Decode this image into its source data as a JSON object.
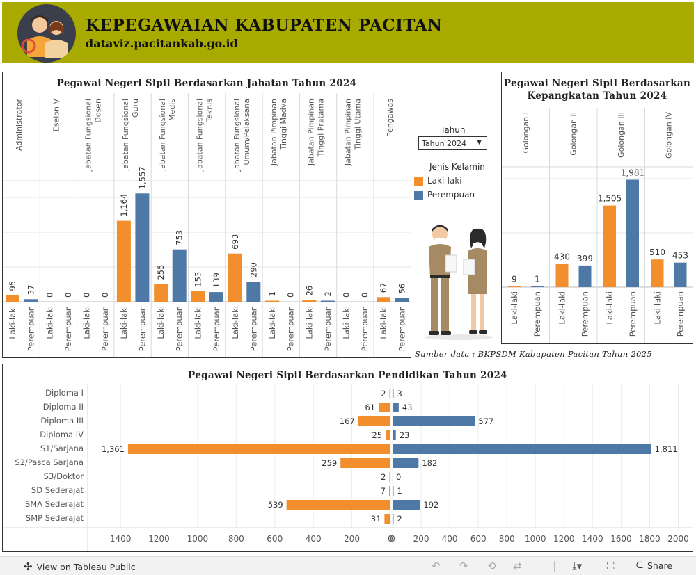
{
  "header": {
    "title": "KEPEGAWAIAN KABUPATEN PACITAN",
    "subtitle": "dataviz.pacitankab.go.id"
  },
  "colors": {
    "male": "#f28e2b",
    "female": "#4e79a7",
    "header_bg": "#a8aa00"
  },
  "legend": {
    "title": "Jenis Kelamin",
    "items": [
      {
        "label": "Laki-laki",
        "color": "#f28e2b"
      },
      {
        "label": "Perempuan",
        "color": "#4e79a7"
      }
    ]
  },
  "filter": {
    "label": "Tahun",
    "value": "Tahun 2024"
  },
  "source": "Sumber data : BKPSDM Kabupaten Pacitan Tahun 2025",
  "footer": {
    "link": "View on Tableau Public",
    "share": "Share"
  },
  "chart_data": [
    {
      "type": "bar",
      "title": "Pegawai Negeri Sipil Berdasarkan Jabatan Tahun 2024",
      "categories": [
        [
          "Administrator"
        ],
        [
          "Eselon V"
        ],
        [
          "Jabatan Fungsional",
          "Dosen"
        ],
        [
          "Jabatan Fungsional",
          "Guru"
        ],
        [
          "Jabatan Fungsional",
          "Medis"
        ],
        [
          "Jabatan Fungsional",
          "Teknis"
        ],
        [
          "Jabatan Fungsional",
          "Umum/Pelaksana"
        ],
        [
          "Jabatan Pimpinan",
          "Tinggi Madya"
        ],
        [
          "Jabatan Pimpinan",
          "Tinggi Pratama"
        ],
        [
          "Jabatan Pimpinan",
          "Tinggi Utama"
        ],
        [
          "Pengawas"
        ]
      ],
      "sub_categories": [
        "Laki-laki",
        "Perempuan"
      ],
      "series": [
        {
          "name": "Laki-laki",
          "values": [
            95,
            0,
            0,
            1164,
            255,
            153,
            693,
            1,
            26,
            0,
            67
          ]
        },
        {
          "name": "Perempuan",
          "values": [
            37,
            0,
            0,
            1557,
            753,
            139,
            290,
            0,
            2,
            0,
            56
          ]
        }
      ],
      "value_labels": {
        "Laki-laki": [
          "95",
          "0",
          "0",
          "1,164",
          "255",
          "153",
          "693",
          "1",
          "26",
          "0",
          "67"
        ],
        "Perempuan": [
          "37",
          "0",
          "0",
          "1,557",
          "753",
          "139",
          "290",
          "0",
          "2",
          "0",
          "56"
        ]
      },
      "ylim": [
        0,
        1600
      ]
    },
    {
      "type": "bar",
      "title": "Pegawai Negeri Sipil Berdasarkan Kepangkatan Tahun 2024",
      "title_lines": [
        "Pegawai Negeri Sipil Berdasarkan",
        "Kepangkatan Tahun 2024"
      ],
      "categories": [
        "Golongan I",
        "Golongan II",
        "Golongan III",
        "Golongan IV"
      ],
      "sub_categories": [
        "Laki-laki",
        "Perempuan"
      ],
      "series": [
        {
          "name": "Laki-laki",
          "values": [
            9,
            430,
            1505,
            510
          ]
        },
        {
          "name": "Perempuan",
          "values": [
            1,
            399,
            1981,
            453
          ]
        }
      ],
      "value_labels": {
        "Laki-laki": [
          "9",
          "430",
          "1,505",
          "510"
        ],
        "Perempuan": [
          "1",
          "399",
          "1,981",
          "453"
        ]
      },
      "ylim": [
        0,
        2000
      ]
    },
    {
      "type": "bar",
      "orientation": "horizontal-diverging",
      "title": "Pegawai Negeri Sipil Berdasarkan Pendidikan Tahun 2024",
      "categories": [
        "Diploma I",
        "Diploma II",
        "Diploma III",
        "Diploma IV",
        "S1/Sarjana",
        "S2/Pasca Sarjana",
        "S3/Doktor",
        "SD Sederajat",
        "SMA Sederajat",
        "SMP Sederajat"
      ],
      "series": [
        {
          "name": "Laki-laki",
          "values": [
            2,
            61,
            167,
            25,
            1361,
            259,
            2,
            7,
            539,
            31
          ]
        },
        {
          "name": "Perempuan",
          "values": [
            3,
            43,
            577,
            23,
            1811,
            182,
            0,
            1,
            192,
            2
          ]
        }
      ],
      "value_labels": {
        "Laki-laki": [
          "2",
          "61",
          "167",
          "25",
          "1,361",
          "259",
          "2",
          "7",
          "539",
          "31"
        ],
        "Perempuan": [
          "3",
          "43",
          "577",
          "23",
          "1,811",
          "182",
          "0",
          "1",
          "192",
          "2"
        ]
      },
      "left_ticks": [
        "1400",
        "1200",
        "1000",
        "800",
        "600",
        "400",
        "200",
        "0"
      ],
      "right_ticks": [
        "0",
        "200",
        "400",
        "600",
        "800",
        "1000",
        "1200",
        "1400",
        "1600",
        "1800",
        "2000"
      ],
      "xlim_left": [
        0,
        1570
      ],
      "xlim_right": [
        0,
        2100
      ]
    }
  ]
}
